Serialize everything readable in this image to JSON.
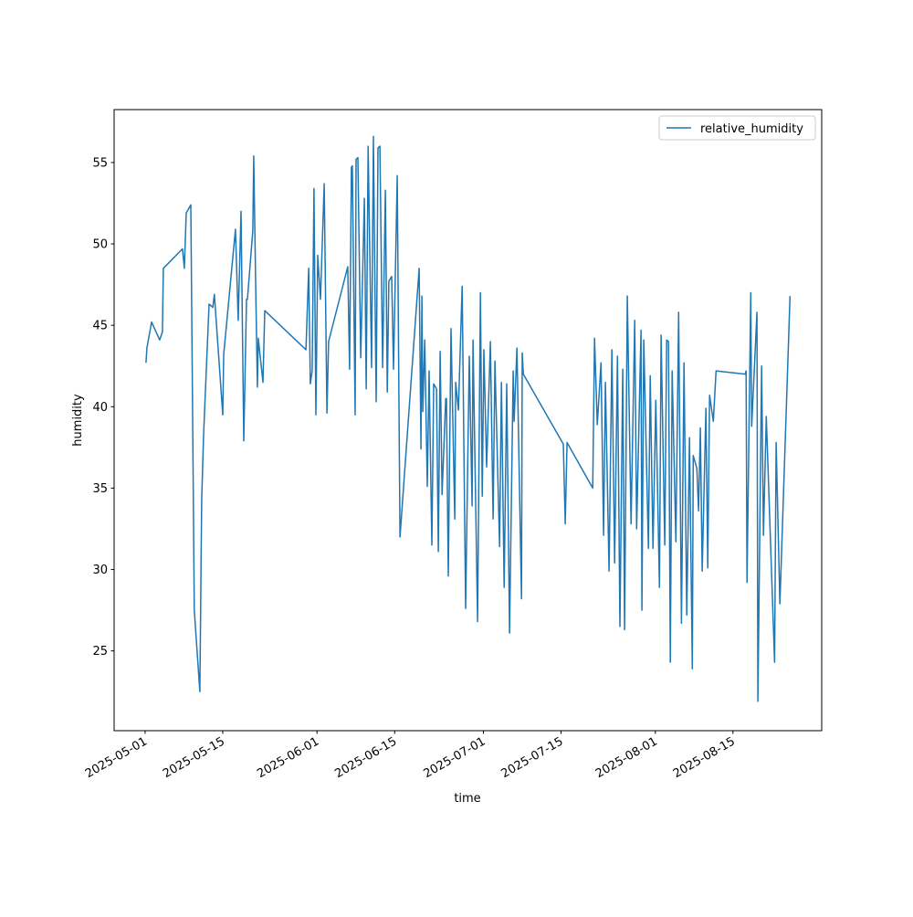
{
  "chart_data": {
    "type": "line",
    "title": "",
    "xlabel": "time",
    "ylabel": "humidity",
    "xlim": [
      "2025-04-25T10",
      "2025-08-31T00"
    ],
    "ylim": [
      20.1,
      58.25
    ],
    "x_ticks": [
      "2025-05-01",
      "2025-05-15",
      "2025-06-01",
      "2025-06-15",
      "2025-07-01",
      "2025-07-15",
      "2025-08-01",
      "2025-08-15"
    ],
    "y_ticks": [
      25,
      30,
      35,
      40,
      45,
      50,
      55
    ],
    "grid": false,
    "legend": {
      "placement": "upper-right"
    },
    "series": [
      {
        "name": "relative_humidity",
        "color": "#1f77b4",
        "points": [
          [
            "2025-05-01T04",
            42.7
          ],
          [
            "2025-05-01T08",
            43.6
          ],
          [
            "2025-05-02T04",
            45.2
          ],
          [
            "2025-05-03T15",
            44.1
          ],
          [
            "2025-05-04T03",
            44.6
          ],
          [
            "2025-05-04T07",
            48.5
          ],
          [
            "2025-05-07T18",
            49.7
          ],
          [
            "2025-05-08T02",
            48.5
          ],
          [
            "2025-05-08T10",
            51.9
          ],
          [
            "2025-05-09T06",
            52.4
          ],
          [
            "2025-05-09T21",
            27.5
          ],
          [
            "2025-05-10T21",
            22.5
          ],
          [
            "2025-05-11T05",
            34.3
          ],
          [
            "2025-05-11T13",
            38.3
          ],
          [
            "2025-05-12T13",
            46.3
          ],
          [
            "2025-05-13T05",
            46.1
          ],
          [
            "2025-05-13T12",
            46.9
          ],
          [
            "2025-05-15T00",
            39.5
          ],
          [
            "2025-05-15T04",
            43.2
          ],
          [
            "2025-05-17T07",
            50.9
          ],
          [
            "2025-05-17T19",
            45.3
          ],
          [
            "2025-05-18T07",
            52.0
          ],
          [
            "2025-05-18T19",
            37.9
          ],
          [
            "2025-05-19T07",
            46.6
          ],
          [
            "2025-05-19T11",
            46.6
          ],
          [
            "2025-05-20T10",
            50.8
          ],
          [
            "2025-05-20T14",
            55.4
          ],
          [
            "2025-05-20T22",
            48.0
          ],
          [
            "2025-05-21T06",
            41.2
          ],
          [
            "2025-05-21T10",
            44.2
          ],
          [
            "2025-05-22T06",
            41.5
          ],
          [
            "2025-05-22T14",
            45.9
          ],
          [
            "2025-05-30T00",
            43.5
          ],
          [
            "2025-05-30T12",
            48.5
          ],
          [
            "2025-05-30T19",
            41.4
          ],
          [
            "2025-05-31T03",
            42.2
          ],
          [
            "2025-05-31T11",
            53.4
          ],
          [
            "2025-05-31T19",
            39.5
          ],
          [
            "2025-06-01T03",
            49.3
          ],
          [
            "2025-06-01T15",
            46.6
          ],
          [
            "2025-06-02T07",
            53.7
          ],
          [
            "2025-06-02T19",
            39.6
          ],
          [
            "2025-06-03T02",
            44.0
          ],
          [
            "2025-06-06T13",
            48.6
          ],
          [
            "2025-06-06T21",
            42.3
          ],
          [
            "2025-06-07T05",
            54.7
          ],
          [
            "2025-06-07T09",
            54.8
          ],
          [
            "2025-06-07T21",
            39.5
          ],
          [
            "2025-06-08T01",
            55.2
          ],
          [
            "2025-06-08T09",
            55.3
          ],
          [
            "2025-06-08T21",
            43.0
          ],
          [
            "2025-06-09T13",
            52.8
          ],
          [
            "2025-06-09T21",
            41.1
          ],
          [
            "2025-06-10T05",
            56.0
          ],
          [
            "2025-06-10T20",
            42.4
          ],
          [
            "2025-06-11T04",
            56.6
          ],
          [
            "2025-06-11T16",
            40.3
          ],
          [
            "2025-06-12T00",
            55.9
          ],
          [
            "2025-06-12T08",
            56.0
          ],
          [
            "2025-06-12T20",
            42.4
          ],
          [
            "2025-06-13T08",
            53.3
          ],
          [
            "2025-06-13T16",
            40.9
          ],
          [
            "2025-06-13T23",
            47.7
          ],
          [
            "2025-06-14T11",
            48.0
          ],
          [
            "2025-06-14T19",
            42.3
          ],
          [
            "2025-06-15T11",
            54.2
          ],
          [
            "2025-06-15T23",
            32.0
          ],
          [
            "2025-06-19T10",
            48.5
          ],
          [
            "2025-06-19T18",
            37.4
          ],
          [
            "2025-06-19T22",
            46.8
          ],
          [
            "2025-06-20T02",
            39.7
          ],
          [
            "2025-06-20T10",
            44.1
          ],
          [
            "2025-06-20T21",
            35.1
          ],
          [
            "2025-06-21T05",
            42.2
          ],
          [
            "2025-06-21T17",
            31.5
          ],
          [
            "2025-06-22T01",
            41.4
          ],
          [
            "2025-06-22T13",
            41.1
          ],
          [
            "2025-06-22T21",
            31.1
          ],
          [
            "2025-06-23T05",
            43.4
          ],
          [
            "2025-06-23T13",
            34.6
          ],
          [
            "2025-06-24T05",
            40.5
          ],
          [
            "2025-06-24T08",
            40.5
          ],
          [
            "2025-06-24T16",
            29.6
          ],
          [
            "2025-06-25T04",
            44.8
          ],
          [
            "2025-06-25T20",
            33.1
          ],
          [
            "2025-06-26T00",
            41.5
          ],
          [
            "2025-06-26T12",
            39.8
          ],
          [
            "2025-06-27T04",
            47.4
          ],
          [
            "2025-06-27T19",
            27.6
          ],
          [
            "2025-06-28T11",
            43.1
          ],
          [
            "2025-06-28T23",
            33.9
          ],
          [
            "2025-06-29T03",
            44.1
          ],
          [
            "2025-06-29T23",
            26.8
          ],
          [
            "2025-06-30T11",
            47.0
          ],
          [
            "2025-06-30T19",
            34.5
          ],
          [
            "2025-07-01T02",
            43.5
          ],
          [
            "2025-07-01T14",
            36.3
          ],
          [
            "2025-07-02T06",
            44.0
          ],
          [
            "2025-07-02T18",
            33.1
          ],
          [
            "2025-07-03T02",
            42.8
          ],
          [
            "2025-07-03T22",
            31.4
          ],
          [
            "2025-07-04T06",
            41.5
          ],
          [
            "2025-07-04T18",
            28.9
          ],
          [
            "2025-07-05T05",
            41.4
          ],
          [
            "2025-07-05T17",
            26.1
          ],
          [
            "2025-07-06T09",
            42.2
          ],
          [
            "2025-07-06T13",
            39.1
          ],
          [
            "2025-07-07T01",
            43.6
          ],
          [
            "2025-07-07T21",
            28.2
          ],
          [
            "2025-07-08T00",
            43.3
          ],
          [
            "2025-07-08T05",
            42.0
          ],
          [
            "2025-07-15T10",
            37.7
          ],
          [
            "2025-07-15T18",
            32.8
          ],
          [
            "2025-07-16T02",
            37.8
          ],
          [
            "2025-07-20T17",
            35.0
          ],
          [
            "2025-07-21T01",
            44.2
          ],
          [
            "2025-07-21T13",
            38.9
          ],
          [
            "2025-07-22T05",
            42.7
          ],
          [
            "2025-07-22T16",
            32.1
          ],
          [
            "2025-07-23T00",
            41.5
          ],
          [
            "2025-07-23T16",
            29.9
          ],
          [
            "2025-07-24T04",
            43.5
          ],
          [
            "2025-07-24T16",
            30.4
          ],
          [
            "2025-07-25T04",
            43.1
          ],
          [
            "2025-07-25T15",
            26.5
          ],
          [
            "2025-07-26T03",
            42.3
          ],
          [
            "2025-07-26T11",
            26.3
          ],
          [
            "2025-07-26T23",
            46.8
          ],
          [
            "2025-07-27T15",
            32.8
          ],
          [
            "2025-07-28T07",
            45.3
          ],
          [
            "2025-07-28T15",
            32.5
          ],
          [
            "2025-07-29T10",
            44.7
          ],
          [
            "2025-07-29T14",
            27.5
          ],
          [
            "2025-07-29T22",
            44.1
          ],
          [
            "2025-07-30T18",
            31.3
          ],
          [
            "2025-07-31T02",
            41.9
          ],
          [
            "2025-07-31T14",
            31.3
          ],
          [
            "2025-08-01T02",
            40.4
          ],
          [
            "2025-08-01T18",
            28.9
          ],
          [
            "2025-08-02T01",
            44.4
          ],
          [
            "2025-08-02T17",
            31.5
          ],
          [
            "2025-08-03T01",
            44.1
          ],
          [
            "2025-08-03T09",
            44.0
          ],
          [
            "2025-08-03T17",
            24.3
          ],
          [
            "2025-08-04T01",
            42.2
          ],
          [
            "2025-08-04T17",
            31.7
          ],
          [
            "2025-08-05T05",
            45.8
          ],
          [
            "2025-08-05T17",
            26.7
          ],
          [
            "2025-08-06T04",
            42.7
          ],
          [
            "2025-08-06T16",
            27.2
          ],
          [
            "2025-08-07T04",
            38.1
          ],
          [
            "2025-08-07T16",
            23.9
          ],
          [
            "2025-08-07T20",
            37.0
          ],
          [
            "2025-08-08T12",
            36.2
          ],
          [
            "2025-08-08T19",
            33.6
          ],
          [
            "2025-08-09T03",
            38.7
          ],
          [
            "2025-08-09T11",
            29.9
          ],
          [
            "2025-08-10T03",
            39.9
          ],
          [
            "2025-08-10T11",
            30.1
          ],
          [
            "2025-08-10T19",
            40.7
          ],
          [
            "2025-08-11T11",
            39.1
          ],
          [
            "2025-08-11T23",
            42.2
          ],
          [
            "2025-08-17T05",
            42.0
          ],
          [
            "2025-08-17T09",
            42.2
          ],
          [
            "2025-08-17T13",
            29.2
          ],
          [
            "2025-08-18T05",
            47.0
          ],
          [
            "2025-08-18T09",
            38.8
          ],
          [
            "2025-08-19T08",
            45.8
          ],
          [
            "2025-08-19T12",
            21.9
          ],
          [
            "2025-08-20T04",
            42.5
          ],
          [
            "2025-08-20T12",
            32.1
          ],
          [
            "2025-08-21T00",
            39.4
          ],
          [
            "2025-08-22T12",
            24.3
          ],
          [
            "2025-08-22T19",
            37.8
          ],
          [
            "2025-08-23T11",
            27.9
          ],
          [
            "2025-08-25T07",
            46.8
          ]
        ]
      }
    ]
  }
}
